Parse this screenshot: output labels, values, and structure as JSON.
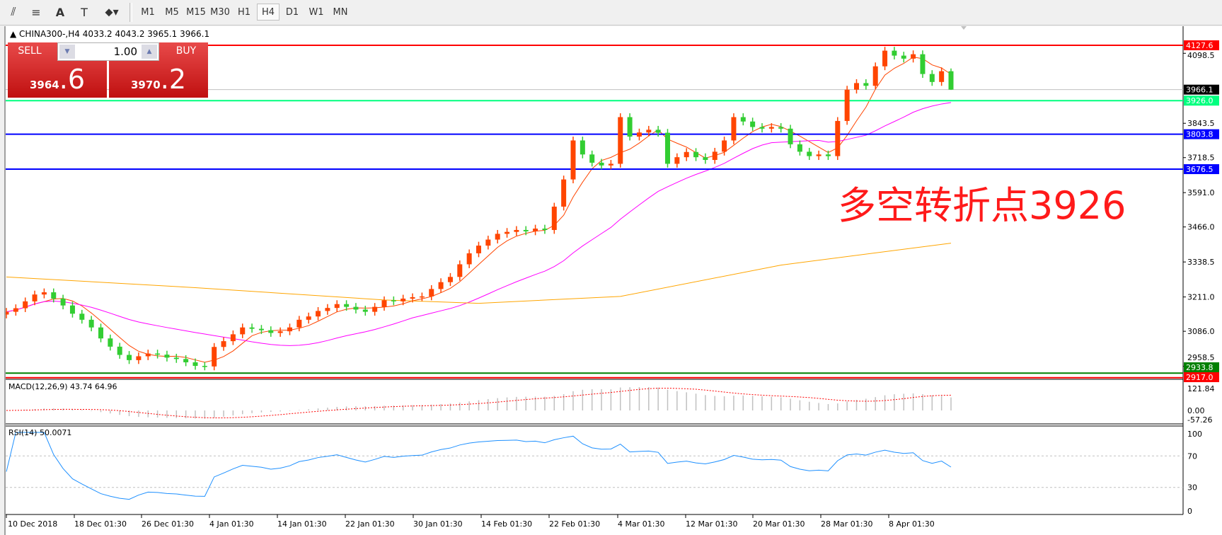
{
  "toolbar": {
    "tools": [
      {
        "name": "equidistant-channel-icon",
        "glyph": "⫽"
      },
      {
        "name": "fibonacci-icon",
        "glyph": "≡"
      },
      {
        "name": "text-icon",
        "glyph": "A"
      },
      {
        "name": "text-label-icon",
        "glyph": "T"
      },
      {
        "name": "arrows-icon",
        "glyph": "⬥▾"
      }
    ],
    "timeframes": [
      "M1",
      "M5",
      "M15",
      "M30",
      "H1",
      "H4",
      "D1",
      "W1",
      "MN"
    ],
    "active_timeframe": "H4"
  },
  "chart": {
    "header": "CHINA300-,H4  4033.2 4043.2 3965.1 3966.1",
    "annotation": "多空转折点3926"
  },
  "trade_panel": {
    "sell_label": "SELL",
    "buy_label": "BUY",
    "lot": "1.00",
    "sell_small": "3964",
    "sell_big": ".6",
    "buy_small": "3970",
    "buy_big": ".2"
  },
  "chart_data": {
    "type": "candlestick",
    "bull_color": "#ff4500",
    "bear_color": "#32cd32",
    "ylim": [
      2905,
      4140
    ],
    "y_ticks": [
      "4098.5",
      "3843.5",
      "3718.5",
      "3591.0",
      "3466.0",
      "3338.5",
      "3211.0",
      "3086.0",
      "2958.5"
    ],
    "x_ticks": [
      "10 Dec 2018",
      "18 Dec 01:30",
      "26 Dec 01:30",
      "4 Jan 01:30",
      "14 Jan 01:30",
      "22 Jan 01:30",
      "30 Jan 01:30",
      "14 Feb 01:30",
      "22 Feb 01:30",
      "4 Mar 01:30",
      "12 Mar 01:30",
      "20 Mar 01:30",
      "28 Mar 01:30",
      "8 Apr 01:30"
    ],
    "closes": [
      3157,
      3170,
      3195,
      3220,
      3228,
      3205,
      3180,
      3150,
      3128,
      3100,
      3060,
      3030,
      3000,
      2981,
      2995,
      3005,
      3001,
      2990,
      2985,
      2973,
      2960,
      2958,
      3029,
      3050,
      3075,
      3100,
      3095,
      3090,
      3080,
      3086,
      3100,
      3128,
      3140,
      3160,
      3171,
      3185,
      3175,
      3165,
      3157,
      3175,
      3199,
      3195,
      3205,
      3210,
      3213,
      3240,
      3265,
      3284,
      3330,
      3370,
      3398,
      3420,
      3441,
      3448,
      3455,
      3450,
      3460,
      3455,
      3540,
      3639,
      3781,
      3730,
      3700,
      3690,
      3696,
      3866,
      3795,
      3810,
      3820,
      3809,
      3696,
      3720,
      3739,
      3720,
      3710,
      3740,
      3781,
      3866,
      3850,
      3830,
      3824,
      3830,
      3824,
      3767,
      3740,
      3724,
      3730,
      3724,
      3852,
      3966,
      3990,
      3980,
      4051,
      4108,
      4090,
      4079,
      4095,
      4023,
      3994,
      4033.2,
      3966.1
    ],
    "last_bar": {
      "open": 4033.2,
      "high": 4043.2,
      "low": 3965.1,
      "close": 3966.1
    },
    "moving_averages": [
      {
        "color": "#ff4500"
      },
      {
        "color": "#ff00ff"
      },
      {
        "color": "#ffa500",
        "points": [
          [
            0,
            3284
          ],
          [
            20,
            3245
          ],
          [
            40,
            3200
          ],
          [
            50,
            3188
          ],
          [
            65,
            3213
          ],
          [
            82,
            3327
          ],
          [
            100,
            3407
          ]
        ]
      }
    ],
    "levels": [
      {
        "value": "4127.6",
        "color": "#ff0000",
        "text": "#ffffff"
      },
      {
        "value": "3966.1",
        "color": "#c0c0c0",
        "label_bg": "#000000",
        "text": "#ffffff"
      },
      {
        "value": "3926.0",
        "color": "#00ff7f",
        "text": "#ffffff"
      },
      {
        "value": "3803.8",
        "color": "#0000ff",
        "text": "#ffffff"
      },
      {
        "value": "3676.5",
        "color": "#0000ff",
        "text": "#ffffff"
      },
      {
        "value": "2933.8",
        "color": "#008000",
        "text": "#ffffff"
      },
      {
        "value": "2917.0",
        "color": "#ff0000",
        "text": "#ffffff"
      }
    ],
    "macd": {
      "label": "MACD(12,26,9) 43.74 64.96",
      "ticks": [
        "121.84",
        "0.00",
        "-57.26"
      ],
      "range": [
        -57.26,
        121.84
      ],
      "hist_color": "#c0c0c0",
      "signal_color": "#ff0000"
    },
    "rsi": {
      "label": "RSI(14) 50.0071",
      "ticks": [
        "100",
        "70",
        "30",
        "0"
      ],
      "levels": [
        70,
        30
      ],
      "color": "#1e90ff"
    }
  }
}
